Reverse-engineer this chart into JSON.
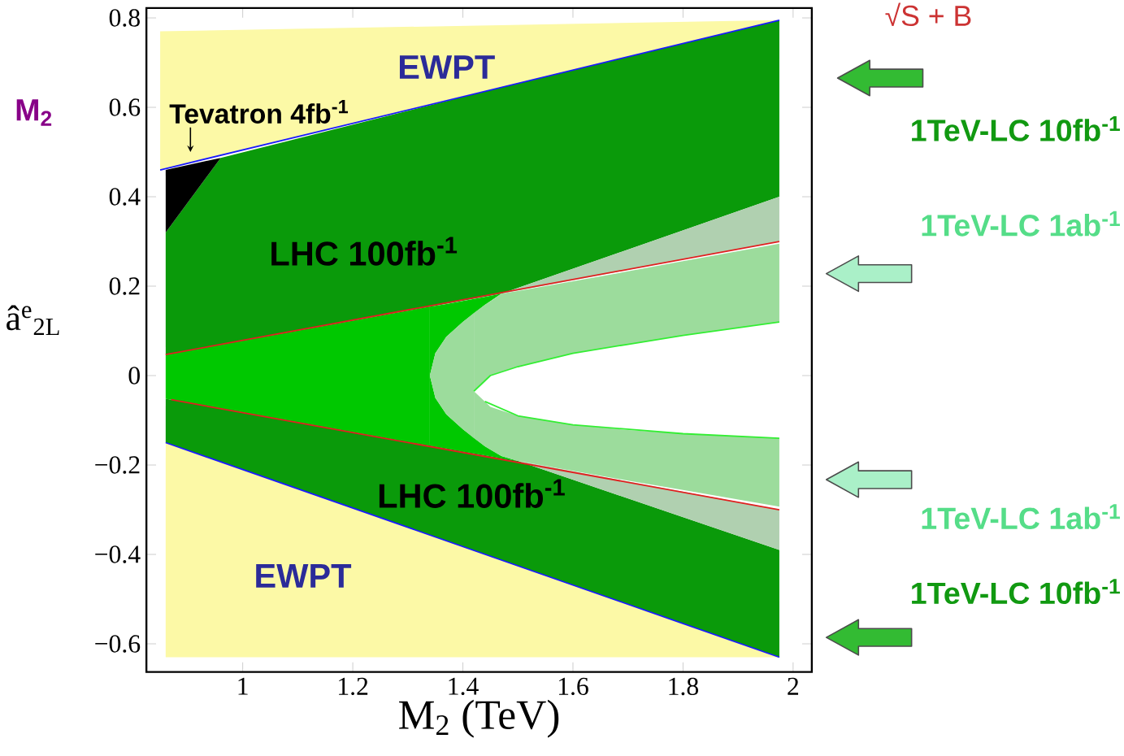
{
  "chart_data": {
    "type": "area",
    "xlabel": "M$_{2}$ (TeV)",
    "ylabel": "â$^{e}$$_{2L}$",
    "xlim": [
      0.825,
      2.034
    ],
    "ylim": [
      -0.663,
      0.822
    ],
    "xticks": [
      1,
      {
        "value": 1.2,
        "label": "1.2"
      },
      {
        "value": 1.4,
        "label": "1.4"
      },
      {
        "value": 1.6,
        "label": "1.6"
      },
      {
        "value": 1.8,
        "label": "1.8"
      },
      2
    ],
    "yticks": [
      {
        "value": -0.6,
        "label": "−0.6"
      },
      {
        "value": -0.4,
        "label": "−0.4"
      },
      {
        "value": -0.2,
        "label": "−0.2"
      },
      0,
      {
        "value": 0.2,
        "label": "0.2"
      },
      {
        "value": 0.4,
        "label": "0.4"
      },
      {
        "value": 0.6,
        "label": "0.6"
      },
      {
        "value": 0.8,
        "label": "0.8"
      }
    ],
    "series": [
      {
        "color": "#fcf9a6",
        "x": [
          0.85,
          1.975
        ],
        "values": [
          null,
          null
        ],
        "upper": [
          0.77,
          0.795
        ],
        "lower": [
          0.46,
          0.795
        ]
      },
      {
        "color": "#fcf9a6",
        "x": [
          0.86,
          1.975
        ],
        "values": [
          null,
          null
        ],
        "upper": [
          -0.15,
          -0.63
        ],
        "lower": [
          -0.63,
          -0.63
        ]
      },
      {
        "color": "#0a9a0a",
        "x": [
          0.86,
          0.96,
          1.47,
          1.975
        ],
        "values": [
          null,
          null,
          null,
          null
        ],
        "upper": [
          0.32,
          0.487,
          0.645,
          0.795
        ],
        "lower": [
          0.047,
          0.069,
          0.183,
          0.4
        ]
      },
      {
        "color": "#0a9a0a",
        "x": [
          0.86,
          1.5,
          1.975
        ],
        "values": [
          null,
          null,
          null
        ],
        "upper": [
          -0.052,
          -0.191,
          -0.39
        ],
        "lower": [
          -0.15,
          -0.426,
          -0.63
        ]
      },
      {
        "color": "#b0d0b0",
        "x": [
          1.47,
          1.975
        ],
        "values": [
          null,
          null
        ],
        "upper": [
          0.183,
          0.4
        ],
        "lower": [
          0.183,
          0.3
        ]
      },
      {
        "color": "#b0d0b0",
        "x": [
          1.5,
          1.975
        ],
        "values": [
          null,
          null
        ],
        "upper": [
          -0.191,
          -0.3
        ],
        "lower": [
          -0.191,
          -0.39
        ]
      },
      {
        "color": "#00c800",
        "x": [
          0.86,
          1.34
        ],
        "values": [
          null,
          null
        ],
        "upper": [
          0.047,
          0.154
        ],
        "lower": [
          -0.052,
          -0.157
        ]
      },
      {
        "color": "#00c800",
        "x": [
          1.34,
          1.35,
          1.37,
          1.4,
          1.44,
          1.47
        ],
        "values": [
          null,
          null,
          null,
          null,
          null,
          null
        ],
        "upper": [
          0.154,
          0.156,
          0.16,
          0.167,
          0.176,
          0.183
        ],
        "lower": [
          0,
          0.05,
          0.087,
          0.12,
          0.158,
          0.183
        ]
      },
      {
        "color": "#00c800",
        "x": [
          1.34,
          1.35,
          1.37,
          1.4,
          1.44,
          1.47,
          1.5
        ],
        "values": [
          null,
          null,
          null,
          null,
          null,
          null,
          null
        ],
        "upper": [
          0,
          -0.05,
          -0.087,
          -0.12,
          -0.158,
          -0.18,
          -0.191
        ],
        "lower": [
          -0.157,
          -0.159,
          -0.163,
          -0.17,
          -0.178,
          -0.185,
          -0.191
        ]
      },
      {
        "color": "#9cdc9c",
        "x": [
          1.34,
          1.35,
          1.37,
          1.4,
          1.42
        ],
        "values": [
          null,
          null,
          null,
          null,
          null
        ],
        "upper": [
          0,
          0.05,
          0.087,
          0.12,
          0.14
        ],
        "lower": [
          0,
          -0.05,
          -0.087,
          -0.12,
          -0.14
        ]
      },
      {
        "color": "#9cdc9c",
        "x": [
          1.42,
          1.44,
          1.45,
          1.47,
          1.5,
          1.6,
          1.7,
          1.8,
          1.975
        ],
        "values": [
          null,
          null,
          null,
          null,
          null,
          null,
          null,
          null,
          null
        ],
        "upper": [
          0.14,
          0.158,
          0.166,
          0.183,
          0.189,
          0.211,
          0.233,
          0.256,
          0.295
        ],
        "lower": [
          -0.035,
          -0.012,
          0.0,
          0.008,
          0.02,
          0.05,
          0.07,
          0.09,
          0.12
        ]
      },
      {
        "color": "#9cdc9c",
        "x": [
          1.42,
          1.44,
          1.45,
          1.47,
          1.5,
          1.6,
          1.7,
          1.8,
          1.975
        ],
        "values": [
          null,
          null,
          null,
          null,
          null,
          null,
          null,
          null,
          null
        ],
        "upper": [
          -0.035,
          -0.058,
          -0.07,
          -0.078,
          -0.09,
          -0.11,
          -0.122,
          -0.13,
          -0.14
        ],
        "lower": [
          -0.14,
          -0.158,
          -0.166,
          -0.18,
          -0.191,
          -0.213,
          -0.235,
          -0.256,
          -0.293
        ]
      },
      {
        "color": "#000000",
        "x": [
          0.86,
          0.96
        ],
        "values": [
          null,
          null
        ],
        "upper": [
          0.46,
          0.487
        ],
        "lower": [
          0.32,
          0.487
        ]
      },
      {
        "type": "line",
        "color": "#1a1aff",
        "x": [
          0.85,
          1.975
        ],
        "values": [
          0.46,
          0.795
        ]
      },
      {
        "type": "line",
        "color": "#1a1aff",
        "x": [
          0.86,
          1.975
        ],
        "values": [
          -0.15,
          -0.63
        ]
      },
      {
        "type": "line",
        "color": "#e02020",
        "x": [
          0.86,
          1.975
        ],
        "values": [
          0.047,
          0.3
        ]
      },
      {
        "type": "line",
        "color": "#e02020",
        "x": [
          0.87,
          1.975
        ],
        "values": [
          -0.054,
          -0.3
        ]
      },
      {
        "type": "line",
        "color": "#33ee33",
        "x": [
          1.42,
          1.45,
          1.5,
          1.6,
          1.7,
          1.8,
          1.975
        ],
        "values": [
          -0.035,
          0.0,
          0.02,
          0.05,
          0.07,
          0.09,
          0.12
        ]
      },
      {
        "type": "line",
        "color": "#33ee33",
        "x": [
          1.44,
          1.5,
          1.6,
          1.8,
          1.975
        ],
        "values": [
          -0.058,
          -0.09,
          -0.11,
          -0.13,
          -0.14
        ]
      }
    ],
    "annotations": [
      "EWPT",
      "Tevatron 4fb$^{-1}$",
      "LHC 100fb$^{-1}$",
      "LHC 100fb$^{-1}$",
      "EWPT",
      "√S + B",
      "M$_{2}$",
      "1TeV-LC 10fb$^{-1}$",
      "1TeV-LC 1ab$^{-1}$",
      "1TeV-LC 1ab$^{-1}$",
      "1TeV-LC 10fb$^{-1}$"
    ]
  }
}
